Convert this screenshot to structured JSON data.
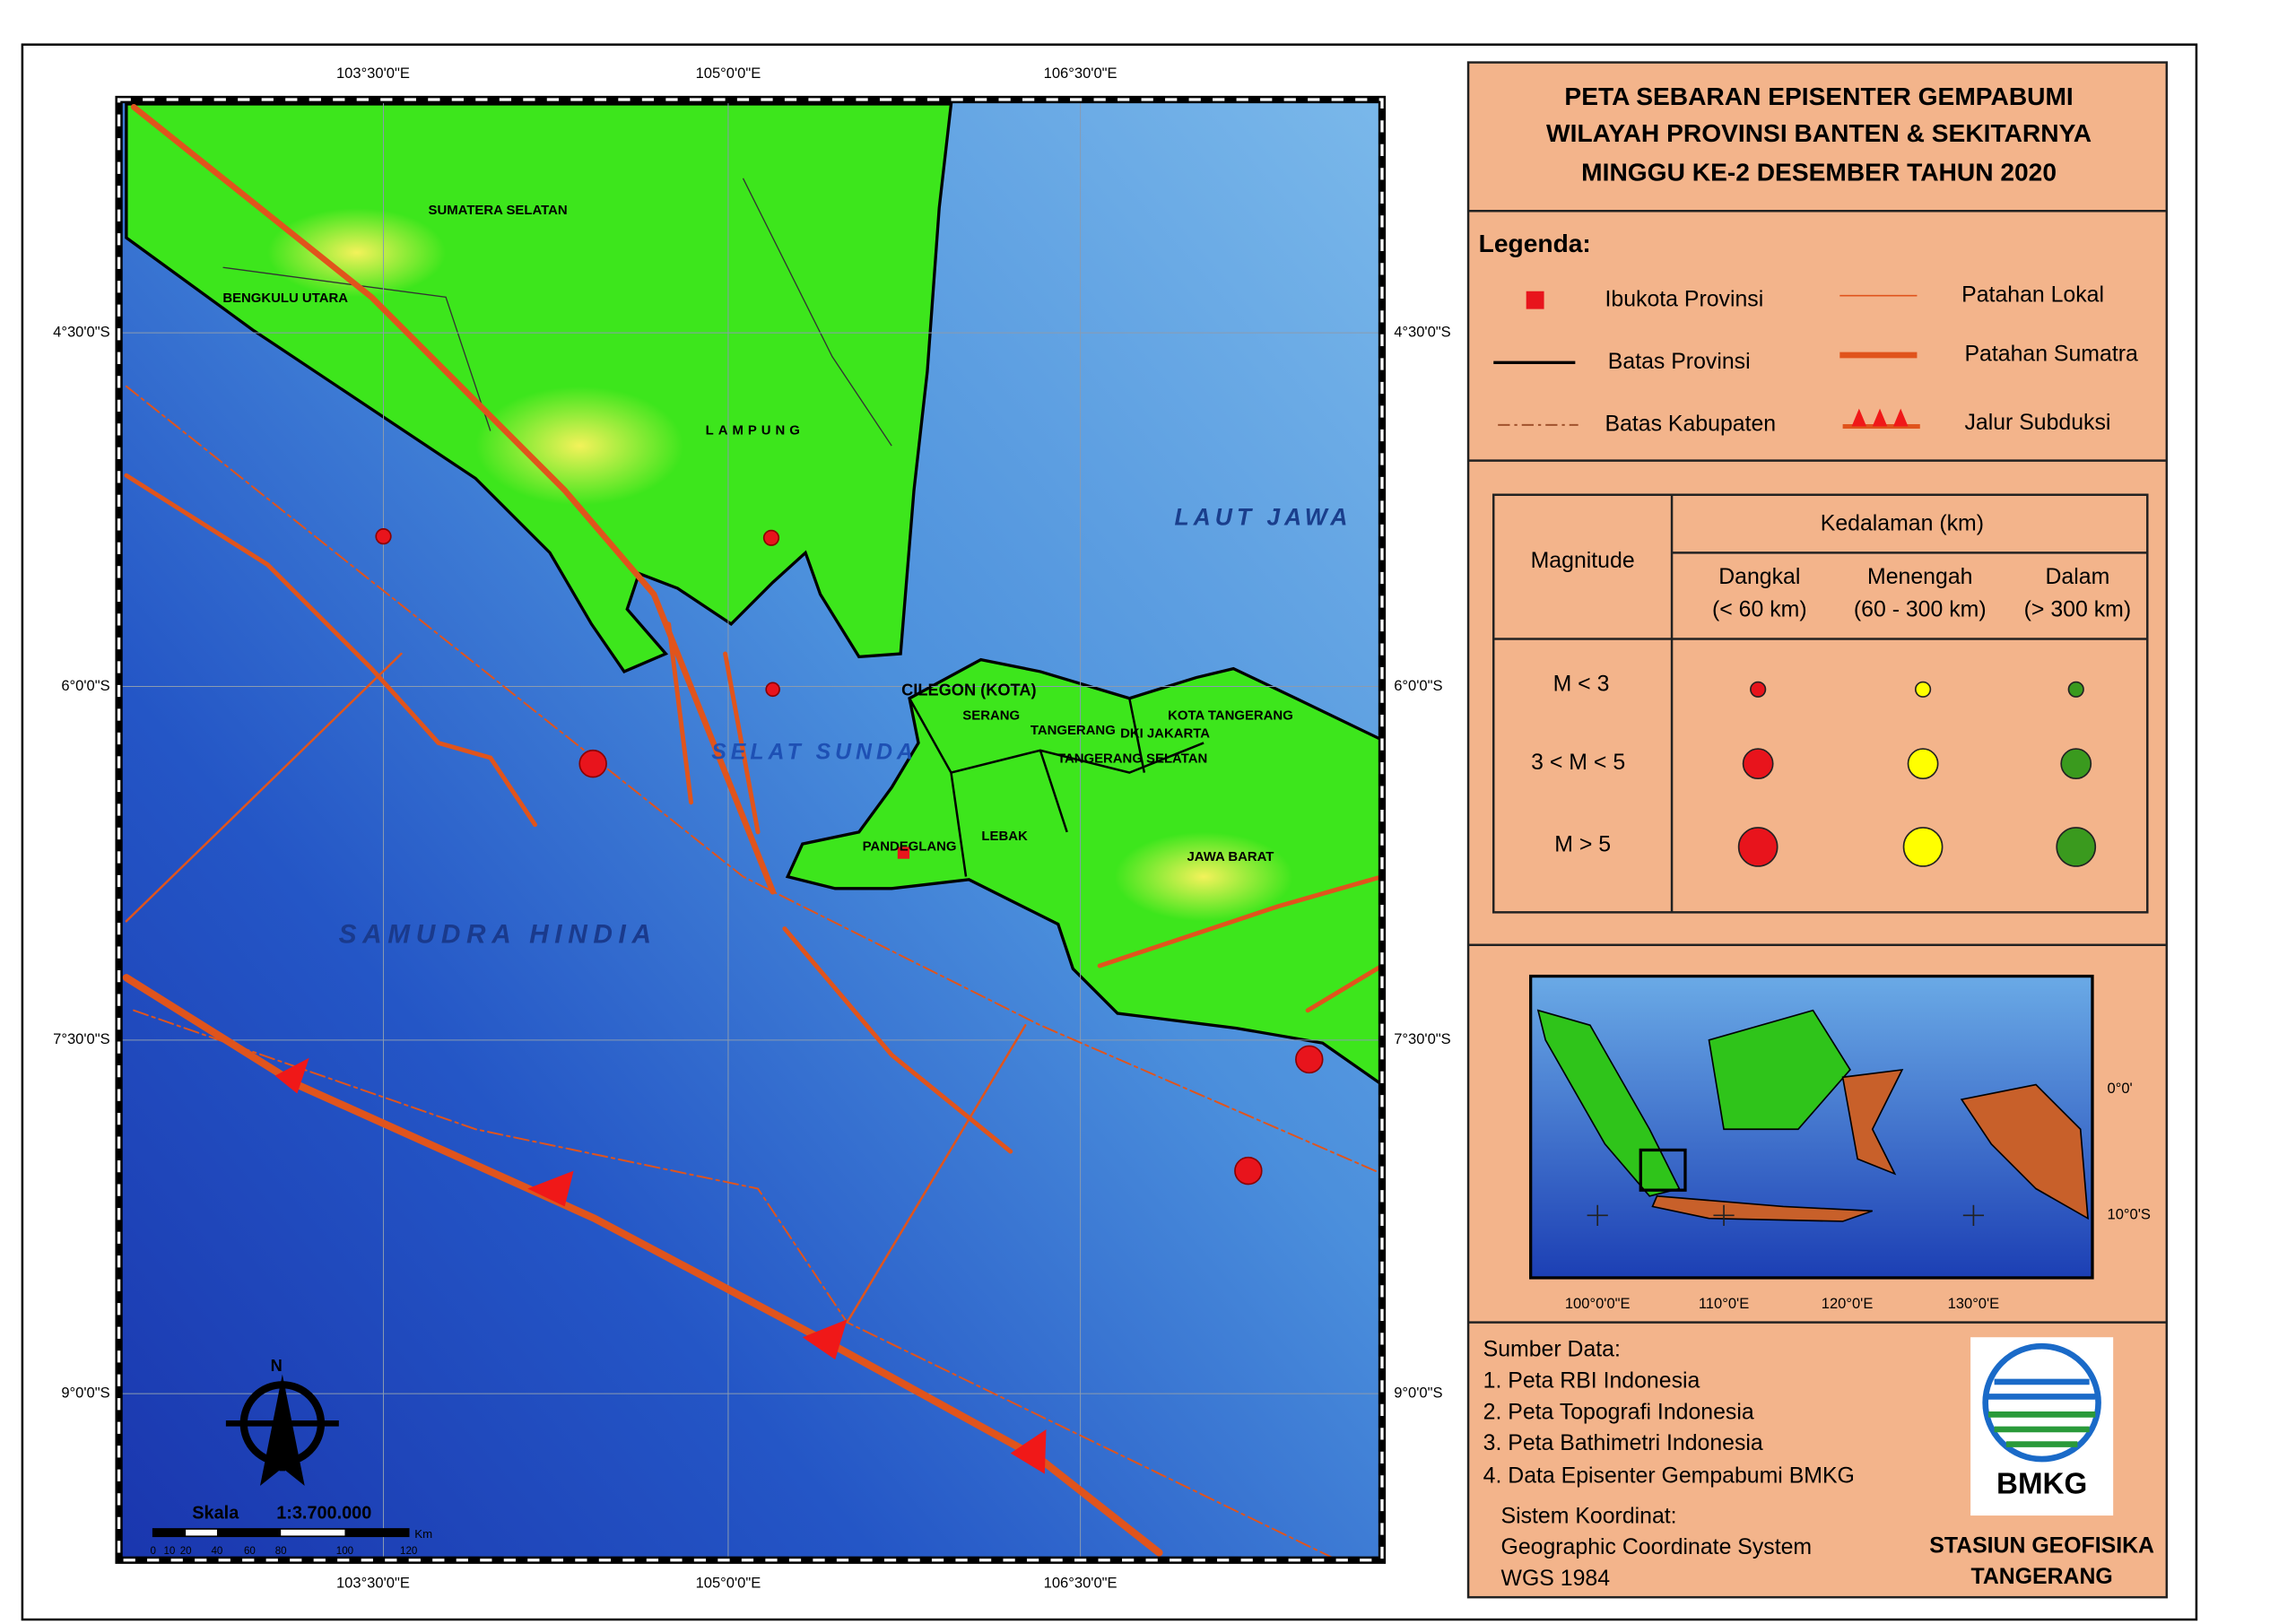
{
  "map": {
    "labels": [
      "SUMATERA SELATAN",
      "BENGKULU UTARA",
      "LAMPUNG",
      "LAUT JAWA",
      "SELAT SUNDA",
      "SAMUDRA HINDIA",
      "CILEGON (KOTA)",
      "SERANG",
      "TANGERANG",
      "KOTA TANGERANG",
      "DKI JAKARTA",
      "TANGERANG SELATAN",
      "PANDEGLANG",
      "LEBAK",
      "JAWA BARAT"
    ],
    "lon_ticks": [
      "103°30'0\"E",
      "105°0'0\"E",
      "106°30'0\"E"
    ],
    "lat_ticks": [
      "4°30'0\"S",
      "6°0'0\"S",
      "7°30'0\"S",
      "9°0'0\"S"
    ],
    "north": "N",
    "scale": {
      "label": "Skala",
      "ratio": "1:3.700.000",
      "unit": "Km",
      "ticks": [
        "0",
        "10",
        "20",
        "40",
        "60",
        "80",
        "100",
        "120"
      ]
    }
  },
  "panel": {
    "title": [
      "PETA SEBARAN EPISENTER GEMPABUMI",
      "WILAYAH PROVINSI BANTEN & SEKITARNYA",
      "MINGGU KE-2 DESEMBER TAHUN 2020"
    ],
    "legend": {
      "heading": "Legenda:",
      "items": [
        "Ibukota Provinsi",
        "Batas Provinsi",
        "Batas Kabupaten",
        "Patahan Lokal",
        "Patahan Sumatra",
        "Jalur Subduksi"
      ]
    },
    "table": {
      "magnitude": "Magnitude",
      "depth": "Kedalaman (km)",
      "columns": [
        [
          "Dangkal",
          "(< 60 km)"
        ],
        [
          "Menengah",
          "(60 - 300 km)"
        ],
        [
          "Dalam",
          "(> 300 km)"
        ]
      ],
      "rows": [
        "M < 3",
        "3 < M < 5",
        "M > 5"
      ]
    },
    "inset": {
      "lon_ticks": [
        "100°0'0\"E",
        "110°0'E",
        "120°0'E",
        "130°0'E"
      ],
      "lat_ticks": [
        "0°0'",
        "10°0'S"
      ]
    },
    "sources": {
      "heading": "Sumber Data:",
      "items": [
        "1. Peta RBI Indonesia",
        "2. Peta Topografi Indonesia",
        "3. Peta Bathimetri Indonesia",
        "4. Data Episenter Gempabumi BMKG"
      ],
      "coord": [
        "Sistem Koordinat:",
        "Geographic Coordinate System",
        "WGS 1984"
      ]
    },
    "logo": "BMKG",
    "station": [
      "STASIUN GEOFISIKA",
      "TANGERANG"
    ]
  }
}
